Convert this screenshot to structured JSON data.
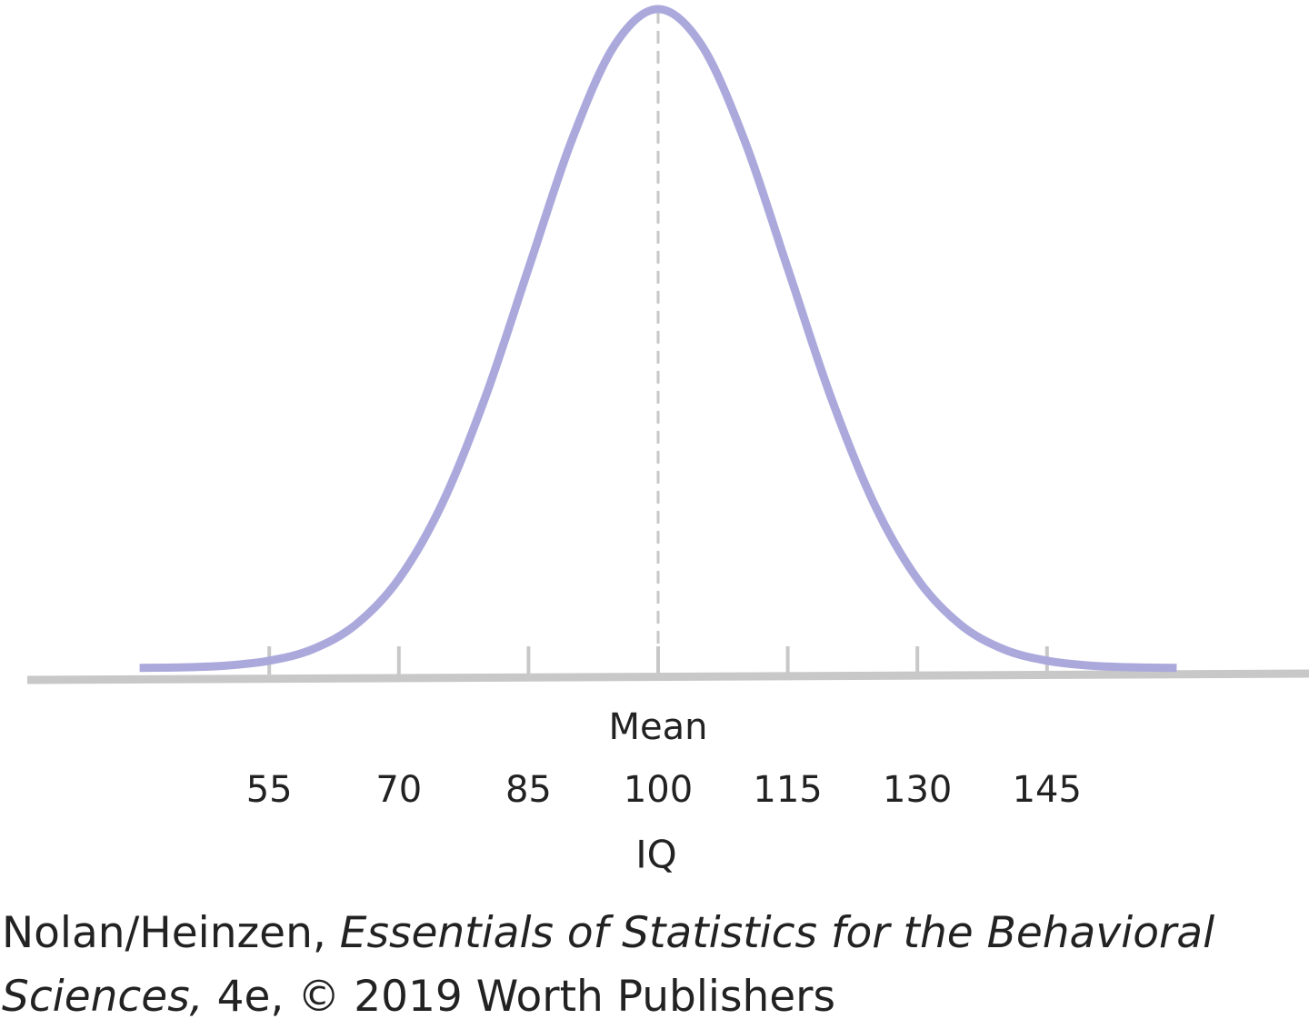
{
  "chart_data": {
    "type": "line",
    "x": [
      40,
      45,
      50,
      55,
      60,
      65,
      70,
      75,
      80,
      85,
      90,
      95,
      100,
      105,
      110,
      115,
      120,
      125,
      130,
      135,
      140,
      145,
      150,
      155,
      160
    ],
    "values": [
      1e-05,
      3e-05,
      0.0001,
      0.0003,
      0.00076,
      0.00175,
      0.0036,
      0.00663,
      0.01093,
      0.01613,
      0.0213,
      0.02516,
      0.0266,
      0.02516,
      0.0213,
      0.01613,
      0.01093,
      0.00663,
      0.0036,
      0.00175,
      0.00076,
      0.0003,
      0.0001,
      3e-05,
      1e-05
    ],
    "color": "#aba9dc",
    "xlim": [
      27,
      175
    ],
    "xticks": [
      55,
      70,
      85,
      100,
      115,
      130,
      145
    ],
    "ylim": [
      0,
      0.0266
    ],
    "x_label": "IQ",
    "annotations": [
      {
        "text": "Mean",
        "x": 100
      }
    ]
  },
  "source": [
    "Nolan/Heinzen,",
    "Essentials of Statistics for the Behavioral Sciences,",
    "4e, © 2019 Worth Publishers"
  ]
}
